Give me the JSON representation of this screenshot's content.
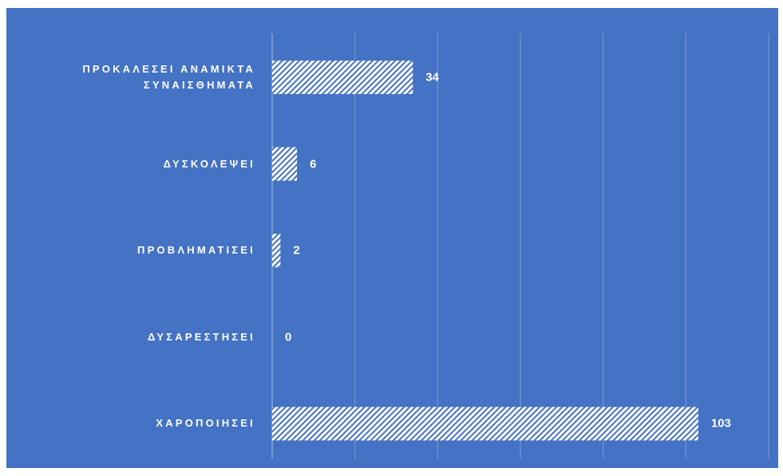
{
  "chart_data": {
    "type": "barh",
    "categories": [
      "ΠΡΟΚΑΛΕΣΕΙ ΑΝΑΜΙΚΤΑ\nΣΥΝΑΙΣΘΗΜΑΤΑ",
      "ΔΥΣΚΟΛΕΨΕΙ",
      "ΠΡΟΒΛΗΜΑΤΙΣΕΙ",
      "ΔΥΣΑΡΕΣΤΗΣΕΙ",
      "ΧΑΡΟΠΟΙΗΣΕΙ"
    ],
    "values": [
      34,
      6,
      2,
      0,
      103
    ],
    "color": "#ffffff",
    "xlim": [
      0,
      120
    ],
    "xticks": [
      0,
      20,
      40,
      60,
      80,
      100,
      120
    ],
    "grid": true
  }
}
